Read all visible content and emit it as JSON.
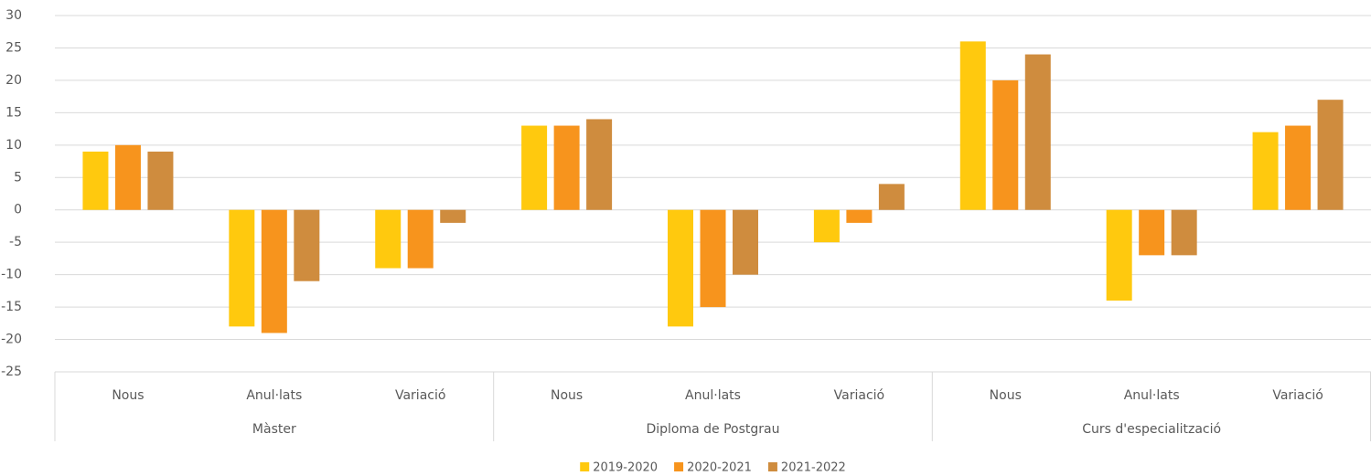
{
  "chart_data": {
    "type": "bar",
    "groups": [
      "Màster",
      "Diploma de Postgrau",
      "Curs d'especialització"
    ],
    "categories": [
      "Nous",
      "Anul·lats",
      "Variació",
      "Nous",
      "Anul·lats",
      "Variació",
      "Nous",
      "Anul·lats",
      "Variació"
    ],
    "series": [
      {
        "name": "2019-2020",
        "color": "#ffc90e",
        "values": [
          9,
          -18,
          -9,
          13,
          -18,
          -5,
          26,
          -14,
          12
        ]
      },
      {
        "name": "2020-2021",
        "color": "#f7941d",
        "values": [
          10,
          -19,
          -9,
          13,
          -15,
          -2,
          20,
          -7,
          13
        ]
      },
      {
        "name": "2021-2022",
        "color": "#cf8c3e",
        "values": [
          9,
          -11,
          -2,
          14,
          -10,
          4,
          24,
          -7,
          17
        ]
      }
    ],
    "ylim": [
      -25,
      30
    ],
    "yticks": [
      -25,
      -20,
      -15,
      -10,
      -5,
      0,
      5,
      10,
      15,
      20,
      25,
      30
    ],
    "grid": true,
    "legend": "bottom"
  }
}
